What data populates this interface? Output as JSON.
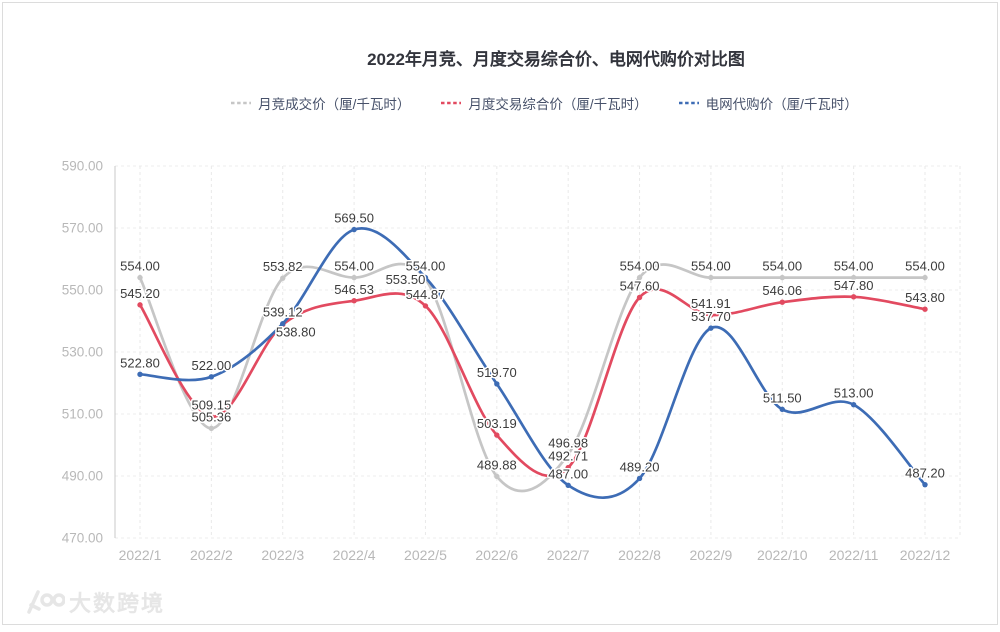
{
  "title": "2022年月竞、月度交易综合价、电网代购价对比图",
  "legend": [
    {
      "label": "月竞成交价（厘/千瓦时）",
      "color": "#c6c6c6"
    },
    {
      "label": "月度交易综合价（厘/千瓦时）",
      "color": "#e24a60"
    },
    {
      "label": "电网代购价（厘/千瓦时）",
      "color": "#3d6cb5"
    }
  ],
  "watermark": {
    "text": "大数跨境"
  },
  "chart_data": {
    "type": "line",
    "smooth": true,
    "grid": true,
    "legend_position": "top",
    "categories": [
      "2022/1",
      "2022/2",
      "2022/3",
      "2022/4",
      "2022/5",
      "2022/6",
      "2022/7",
      "2022/8",
      "2022/9",
      "2022/10",
      "2022/11",
      "2022/12"
    ],
    "series": [
      {
        "name": "月竞成交价（厘/千瓦时）",
        "color": "#c6c6c6",
        "values": [
          554.0,
          505.36,
          553.82,
          554.0,
          553.5,
          489.88,
          496.98,
          554.0,
          554.0,
          554.0,
          554.0,
          554.0
        ]
      },
      {
        "name": "月度交易综合价（厘/千瓦时）",
        "color": "#e24a60",
        "values": [
          545.2,
          509.15,
          538.8,
          546.53,
          544.87,
          503.19,
          492.71,
          547.6,
          541.91,
          546.06,
          547.8,
          543.8
        ]
      },
      {
        "name": "电网代购价（厘/千瓦时）",
        "color": "#3d6cb5",
        "values": [
          522.8,
          522.0,
          539.12,
          569.5,
          554.0,
          519.7,
          487.0,
          489.2,
          537.7,
          511.5,
          513.0,
          487.2
        ]
      }
    ],
    "ylabel": "",
    "xlabel": "",
    "ylim": [
      470,
      590
    ],
    "ytick_step": 20,
    "ytick_labels": [
      "470.00",
      "490.00",
      "510.00",
      "530.00",
      "550.00",
      "570.00",
      "590.00"
    ]
  }
}
